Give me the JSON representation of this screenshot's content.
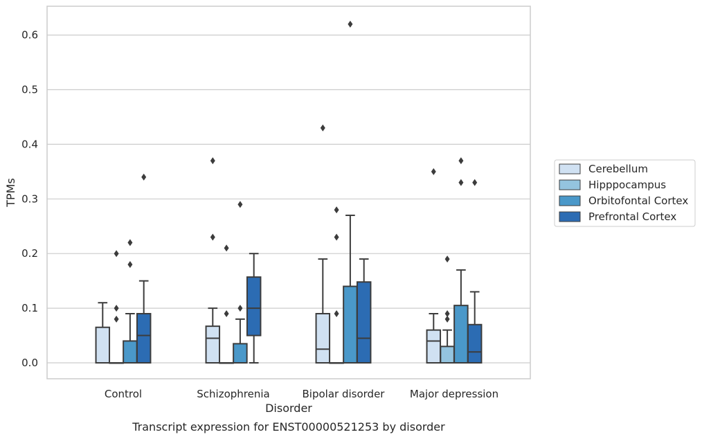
{
  "caption": "Transcript expression for ENST00000521253 by disorder",
  "chart_data": {
    "type": "box",
    "title": "",
    "xlabel": "Disorder",
    "ylabel": "TPMs",
    "ylim": [
      -0.03,
      0.655
    ],
    "yticks": [
      0.0,
      0.1,
      0.2,
      0.3,
      0.4,
      0.5,
      0.6
    ],
    "ytick_labels": [
      "0.0",
      "0.1",
      "0.2",
      "0.3",
      "0.4",
      "0.5",
      "0.6"
    ],
    "grid": "horizontal",
    "legend_position": "right",
    "categories": [
      "Control",
      "Schizophrenia",
      "Bipolar disorder",
      "Major depression"
    ],
    "series": [
      {
        "name": "Cerebellum",
        "color": "#d0e1f2",
        "boxes": [
          {
            "q1": 0,
            "median": 0,
            "q3": 0.065,
            "whisker_low": 0,
            "whisker_high": 0.11,
            "outliers": []
          },
          {
            "q1": 0,
            "median": 0.045,
            "q3": 0.067,
            "whisker_low": 0,
            "whisker_high": 0.1,
            "outliers": [
              0.23,
              0.37
            ]
          },
          {
            "q1": 0,
            "median": 0.025,
            "q3": 0.09,
            "whisker_low": 0,
            "whisker_high": 0.19,
            "outliers": [
              0.43
            ]
          },
          {
            "q1": 0,
            "median": 0.04,
            "q3": 0.06,
            "whisker_low": 0,
            "whisker_high": 0.09,
            "outliers": [
              0.35
            ]
          }
        ]
      },
      {
        "name": "Hipppocampus",
        "color": "#94c4df",
        "boxes": [
          {
            "q1": 0,
            "median": 0,
            "q3": 0,
            "whisker_low": 0,
            "whisker_high": 0,
            "outliers": [
              0.08,
              0.1,
              0.2
            ]
          },
          {
            "q1": 0,
            "median": 0,
            "q3": 0,
            "whisker_low": 0,
            "whisker_high": 0,
            "outliers": [
              0.09,
              0.21
            ]
          },
          {
            "q1": 0,
            "median": 0,
            "q3": 0,
            "whisker_low": 0,
            "whisker_high": 0,
            "outliers": [
              0.09,
              0.23,
              0.28
            ]
          },
          {
            "q1": 0,
            "median": 0,
            "q3": 0.03,
            "whisker_low": 0,
            "whisker_high": 0.06,
            "outliers": [
              0.08,
              0.09,
              0.19
            ]
          }
        ]
      },
      {
        "name": "Orbitofontal Cortex",
        "color": "#4a98c9",
        "boxes": [
          {
            "q1": 0,
            "median": 0,
            "q3": 0.04,
            "whisker_low": 0,
            "whisker_high": 0.09,
            "outliers": [
              0.18,
              0.22
            ]
          },
          {
            "q1": 0,
            "median": 0,
            "q3": 0.035,
            "whisker_low": 0,
            "whisker_high": 0.08,
            "outliers": [
              0.1,
              0.29
            ]
          },
          {
            "q1": 0,
            "median": 0,
            "q3": 0.14,
            "whisker_low": 0,
            "whisker_high": 0.27,
            "outliers": [
              0.62
            ]
          },
          {
            "q1": 0,
            "median": 0,
            "q3": 0.105,
            "whisker_low": 0,
            "whisker_high": 0.17,
            "outliers": [
              0.33,
              0.37
            ]
          }
        ]
      },
      {
        "name": "Prefrontal Cortex",
        "color": "#2c6cb3",
        "boxes": [
          {
            "q1": 0,
            "median": 0.05,
            "q3": 0.09,
            "whisker_low": 0,
            "whisker_high": 0.15,
            "outliers": [
              0.34
            ]
          },
          {
            "q1": 0.05,
            "median": 0.1,
            "q3": 0.157,
            "whisker_low": 0,
            "whisker_high": 0.2,
            "outliers": []
          },
          {
            "q1": 0,
            "median": 0.045,
            "q3": 0.148,
            "whisker_low": 0,
            "whisker_high": 0.19,
            "outliers": []
          },
          {
            "q1": 0,
            "median": 0.02,
            "q3": 0.07,
            "whisker_low": 0,
            "whisker_high": 0.13,
            "outliers": [
              0.33
            ]
          }
        ]
      }
    ]
  }
}
